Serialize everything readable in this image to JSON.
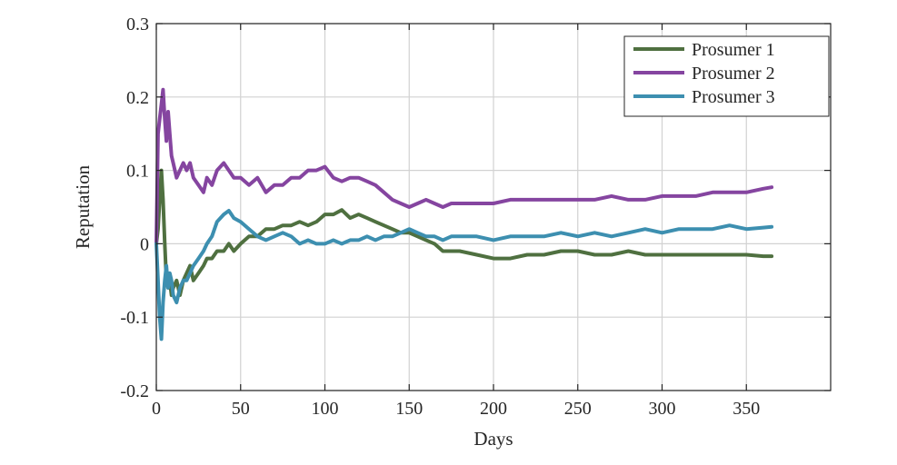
{
  "chart_data": {
    "type": "line",
    "xlabel": "Days",
    "ylabel": "Reputation",
    "xlim": [
      0,
      400
    ],
    "ylim": [
      -0.2,
      0.3
    ],
    "x_ticks": [
      0,
      50,
      100,
      150,
      200,
      250,
      300,
      350
    ],
    "x_tick_labels": [
      "0",
      "50",
      "100",
      "150",
      "200",
      "250",
      "300",
      "350"
    ],
    "y_ticks": [
      -0.2,
      -0.1,
      0,
      0.1,
      0.2,
      0.3
    ],
    "y_tick_labels": [
      "-0.2",
      "-0.1",
      "0",
      "0.1",
      "0.2",
      "0.3"
    ],
    "grid": true,
    "legend_position": "top-right",
    "x": [
      0,
      1,
      2,
      3,
      4,
      5,
      6,
      7,
      8,
      9,
      10,
      12,
      14,
      16,
      18,
      20,
      22,
      25,
      28,
      30,
      33,
      36,
      40,
      43,
      46,
      50,
      55,
      60,
      65,
      70,
      75,
      80,
      85,
      90,
      95,
      100,
      105,
      110,
      115,
      120,
      125,
      130,
      135,
      140,
      145,
      150,
      155,
      160,
      165,
      170,
      175,
      180,
      190,
      200,
      210,
      220,
      230,
      240,
      250,
      260,
      270,
      280,
      290,
      300,
      310,
      320,
      330,
      340,
      350,
      360,
      365
    ],
    "series": [
      {
        "name": "Prosumer 1",
        "color": "#4f7040",
        "values": [
          0,
          0.02,
          0.06,
          0.1,
          0.06,
          0.0,
          -0.05,
          -0.06,
          -0.05,
          -0.07,
          -0.06,
          -0.05,
          -0.07,
          -0.05,
          -0.04,
          -0.03,
          -0.05,
          -0.04,
          -0.03,
          -0.02,
          -0.02,
          -0.01,
          -0.01,
          0.0,
          -0.01,
          0.0,
          0.01,
          0.01,
          0.02,
          0.02,
          0.025,
          0.025,
          0.03,
          0.025,
          0.03,
          0.04,
          0.04,
          0.046,
          0.035,
          0.04,
          0.035,
          0.03,
          0.025,
          0.02,
          0.015,
          0.015,
          0.01,
          0.005,
          0.0,
          -0.01,
          -0.01,
          -0.01,
          -0.015,
          -0.02,
          -0.02,
          -0.015,
          -0.015,
          -0.01,
          -0.01,
          -0.015,
          -0.015,
          -0.01,
          -0.015,
          -0.015,
          -0.015,
          -0.015,
          -0.015,
          -0.015,
          -0.015,
          -0.017,
          -0.017
        ]
      },
      {
        "name": "Prosumer 2",
        "color": "#8545a0",
        "values": [
          0,
          0.15,
          0.17,
          0.19,
          0.21,
          0.17,
          0.14,
          0.18,
          0.15,
          0.12,
          0.11,
          0.09,
          0.1,
          0.11,
          0.1,
          0.11,
          0.09,
          0.08,
          0.07,
          0.09,
          0.08,
          0.1,
          0.11,
          0.1,
          0.09,
          0.09,
          0.08,
          0.09,
          0.07,
          0.08,
          0.08,
          0.09,
          0.09,
          0.1,
          0.1,
          0.105,
          0.09,
          0.085,
          0.09,
          0.09,
          0.085,
          0.08,
          0.07,
          0.06,
          0.055,
          0.05,
          0.055,
          0.06,
          0.055,
          0.05,
          0.055,
          0.055,
          0.055,
          0.055,
          0.06,
          0.06,
          0.06,
          0.06,
          0.06,
          0.06,
          0.065,
          0.06,
          0.06,
          0.065,
          0.065,
          0.065,
          0.07,
          0.07,
          0.07,
          0.075,
          0.077
        ]
      },
      {
        "name": "Prosumer 3",
        "color": "#3d8fb0",
        "values": [
          0,
          -0.05,
          -0.1,
          -0.13,
          -0.08,
          -0.05,
          -0.03,
          -0.06,
          -0.04,
          -0.05,
          -0.07,
          -0.08,
          -0.06,
          -0.05,
          -0.05,
          -0.04,
          -0.03,
          -0.02,
          -0.01,
          0.0,
          0.01,
          0.03,
          0.04,
          0.045,
          0.035,
          0.03,
          0.02,
          0.01,
          0.005,
          0.01,
          0.015,
          0.01,
          0.0,
          0.005,
          0.0,
          0.0,
          0.005,
          0.0,
          0.005,
          0.005,
          0.01,
          0.005,
          0.01,
          0.01,
          0.015,
          0.02,
          0.015,
          0.01,
          0.01,
          0.005,
          0.01,
          0.01,
          0.01,
          0.005,
          0.01,
          0.01,
          0.01,
          0.015,
          0.01,
          0.015,
          0.01,
          0.015,
          0.02,
          0.015,
          0.02,
          0.02,
          0.02,
          0.025,
          0.02,
          0.022,
          0.023
        ]
      }
    ]
  }
}
